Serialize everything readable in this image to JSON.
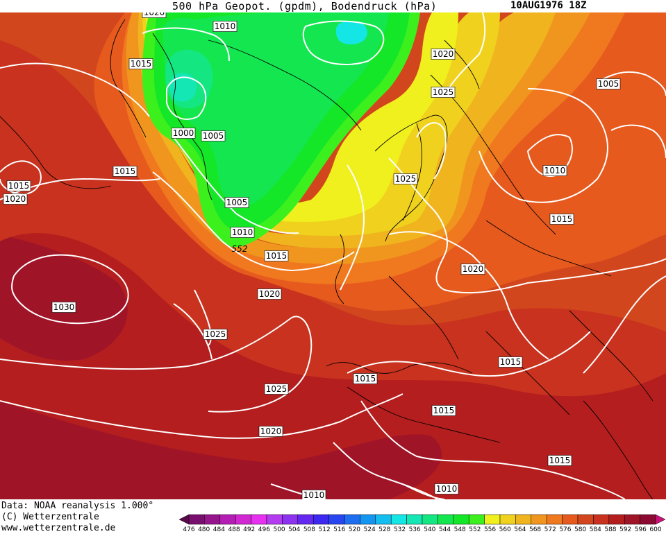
{
  "title": {
    "text": "500 hPa Geopot. (gpdm), Bodendruck (hPa)",
    "date": "10AUG1976 18Z"
  },
  "footer": {
    "line1": "Data: NOAA reanalysis 1.000°",
    "line2": "(C) Wetterzentrale",
    "line3": "www.wetterzentrale.de"
  },
  "colorbar": {
    "levels": [
      "476",
      "480",
      "484",
      "488",
      "492",
      "496",
      "500",
      "504",
      "508",
      "512",
      "516",
      "520",
      "524",
      "528",
      "532",
      "536",
      "540",
      "544",
      "548",
      "552",
      "556",
      "560",
      "564",
      "568",
      "572",
      "576",
      "580",
      "584",
      "588",
      "592",
      "596",
      "600"
    ],
    "colors": [
      "#5a0a4a",
      "#780f6e",
      "#96148c",
      "#b41eb4",
      "#d228d2",
      "#e632f0",
      "#b43cf0",
      "#8c32f0",
      "#6428f0",
      "#3c28f0",
      "#2846f0",
      "#1e6ef0",
      "#1496f0",
      "#14bef0",
      "#14e6e6",
      "#14e6b4",
      "#14e682",
      "#14e650",
      "#14e628",
      "#3cf01e",
      "#f0f01e",
      "#f0d21e",
      "#f0b41e",
      "#f0961e",
      "#f0781e",
      "#e65a1e",
      "#d2461e",
      "#c8321e",
      "#b41e1e",
      "#a01428",
      "#8c0a32",
      "#c8147a"
    ]
  },
  "map_layers": {
    "fill_colors": {
      "c552": "#3cf01e",
      "c548": "#14e628",
      "c544": "#14e650",
      "c540": "#14e682",
      "c536": "#14e6b4",
      "c532": "#14e6e6",
      "c556": "#f0f01e",
      "c560": "#f0d21e",
      "c564": "#f0b41e",
      "c568": "#f0961e",
      "c572": "#f0781e",
      "c576": "#e65a1e",
      "c580": "#d2461e",
      "c584": "#c8321e",
      "c588": "#b41e1e",
      "c592": "#a01428",
      "c596": "#8c0a32"
    },
    "geopotential_label": "552"
  },
  "isobar_labels": [
    {
      "id": "1020-a",
      "text": "1020"
    },
    {
      "id": "1010-a",
      "text": "1010"
    },
    {
      "id": "1015-a",
      "text": "1015"
    },
    {
      "id": "1000-a",
      "text": "1000"
    },
    {
      "id": "1005-a",
      "text": "1005"
    },
    {
      "id": "1015-b",
      "text": "1015"
    },
    {
      "id": "1015-c",
      "text": "1015"
    },
    {
      "id": "1020-b",
      "text": "1020"
    },
    {
      "id": "1005-b",
      "text": "1005"
    },
    {
      "id": "1010-b",
      "text": "1010"
    },
    {
      "id": "1015-d",
      "text": "1015"
    },
    {
      "id": "1020-c",
      "text": "1020"
    },
    {
      "id": "1030-a",
      "text": "1030"
    },
    {
      "id": "1025-a",
      "text": "1025"
    },
    {
      "id": "1025-b",
      "text": "1025"
    },
    {
      "id": "1020-d",
      "text": "1020"
    },
    {
      "id": "1010-c",
      "text": "1010"
    },
    {
      "id": "1020-e",
      "text": "1020"
    },
    {
      "id": "1025-c",
      "text": "1025"
    },
    {
      "id": "1005-c",
      "text": "1005"
    },
    {
      "id": "1010-d",
      "text": "1010"
    },
    {
      "id": "1015-e",
      "text": "1015"
    },
    {
      "id": "1020-f",
      "text": "1020"
    },
    {
      "id": "1015-f",
      "text": "1015"
    },
    {
      "id": "1015-g",
      "text": "1015"
    },
    {
      "id": "1015-h",
      "text": "1015"
    },
    {
      "id": "1015-i",
      "text": "1015"
    },
    {
      "id": "1010-e",
      "text": "1010"
    },
    {
      "id": "1025-d",
      "text": "1025"
    }
  ]
}
